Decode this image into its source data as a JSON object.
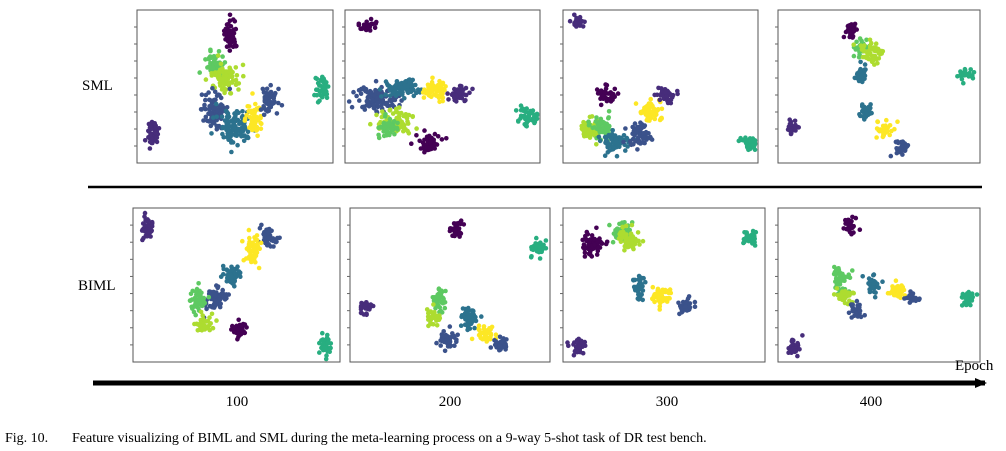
{
  "rows": [
    {
      "label": "SML"
    },
    {
      "label": "BIML"
    }
  ],
  "axis": {
    "label": "Epoch",
    "ticks": [
      "100",
      "200",
      "300",
      "400"
    ]
  },
  "caption": {
    "label": "Fig. 10.",
    "text": "Feature visualizing of BIML and SML during the meta-learning process on a 9-way 5-shot task of DR test bench."
  }
}
